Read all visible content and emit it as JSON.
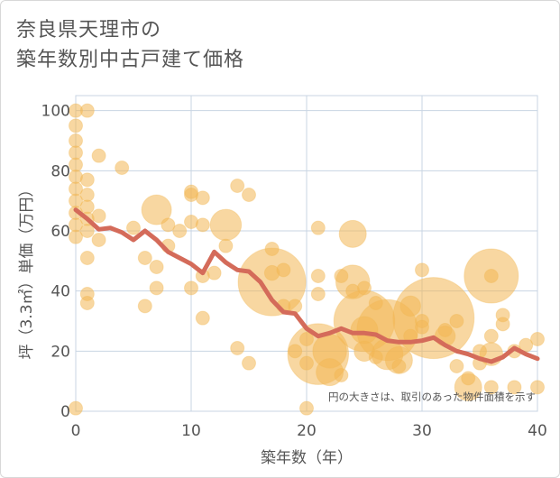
{
  "colors": {
    "bubble": "#f2b654",
    "line": "#d46b5a",
    "grid": "#c8d4e3",
    "text": "#555555"
  },
  "chart_data": {
    "type": "scatter",
    "title_lines": [
      "奈良県天理市の",
      "築年数別中古戸建て価格"
    ],
    "xlabel": "築年数（年）",
    "ylabel": "坪（3.3㎡）単価（万円）",
    "note": "円の大きさは、取引のあった物件面積を示す",
    "xlim": [
      0,
      40
    ],
    "ylim": [
      0,
      105
    ],
    "xticks": [
      "0",
      "10",
      "20",
      "30",
      "40"
    ],
    "yticks": [
      "0",
      "20",
      "40",
      "60",
      "80",
      "100"
    ],
    "grid": true,
    "series": [
      {
        "type": "scatter",
        "points": [
          {
            "x": 0,
            "y": 100,
            "s": 1
          },
          {
            "x": 0,
            "y": 95,
            "s": 1
          },
          {
            "x": 0,
            "y": 90,
            "s": 1
          },
          {
            "x": 0,
            "y": 86,
            "s": 1
          },
          {
            "x": 0,
            "y": 82,
            "s": 1
          },
          {
            "x": 0,
            "y": 78,
            "s": 1
          },
          {
            "x": 0,
            "y": 74,
            "s": 1
          },
          {
            "x": 0,
            "y": 70,
            "s": 1
          },
          {
            "x": 0,
            "y": 66,
            "s": 1
          },
          {
            "x": 0,
            "y": 62,
            "s": 1
          },
          {
            "x": 0,
            "y": 58,
            "s": 1
          },
          {
            "x": 0,
            "y": 1,
            "s": 1
          },
          {
            "x": 1,
            "y": 100,
            "s": 1
          },
          {
            "x": 1,
            "y": 77,
            "s": 1
          },
          {
            "x": 1,
            "y": 72,
            "s": 1
          },
          {
            "x": 1,
            "y": 68,
            "s": 1
          },
          {
            "x": 1,
            "y": 64,
            "s": 1
          },
          {
            "x": 1,
            "y": 60,
            "s": 1
          },
          {
            "x": 1,
            "y": 51,
            "s": 1
          },
          {
            "x": 1,
            "y": 39,
            "s": 1
          },
          {
            "x": 1,
            "y": 36,
            "s": 1
          },
          {
            "x": 2,
            "y": 85,
            "s": 1
          },
          {
            "x": 2,
            "y": 65,
            "s": 1
          },
          {
            "x": 2,
            "y": 57,
            "s": 1
          },
          {
            "x": 4,
            "y": 81,
            "s": 1
          },
          {
            "x": 5,
            "y": 61,
            "s": 1
          },
          {
            "x": 6,
            "y": 51,
            "s": 1
          },
          {
            "x": 6,
            "y": 35,
            "s": 1
          },
          {
            "x": 7,
            "y": 67,
            "s": 2.2
          },
          {
            "x": 7,
            "y": 48,
            "s": 1
          },
          {
            "x": 7,
            "y": 41,
            "s": 1
          },
          {
            "x": 8,
            "y": 62,
            "s": 1
          },
          {
            "x": 8,
            "y": 55,
            "s": 1
          },
          {
            "x": 9,
            "y": 60,
            "s": 1
          },
          {
            "x": 10,
            "y": 73,
            "s": 1
          },
          {
            "x": 10,
            "y": 72,
            "s": 1
          },
          {
            "x": 10,
            "y": 63,
            "s": 1
          },
          {
            "x": 10,
            "y": 41,
            "s": 1
          },
          {
            "x": 11,
            "y": 71,
            "s": 1
          },
          {
            "x": 11,
            "y": 62,
            "s": 1
          },
          {
            "x": 11,
            "y": 45,
            "s": 1
          },
          {
            "x": 11,
            "y": 31,
            "s": 1
          },
          {
            "x": 12,
            "y": 46,
            "s": 1
          },
          {
            "x": 13,
            "y": 62,
            "s": 2.3
          },
          {
            "x": 13,
            "y": 55,
            "s": 1
          },
          {
            "x": 14,
            "y": 75,
            "s": 1
          },
          {
            "x": 14,
            "y": 21,
            "s": 1
          },
          {
            "x": 15,
            "y": 72,
            "s": 1
          },
          {
            "x": 15,
            "y": 16,
            "s": 1
          },
          {
            "x": 17,
            "y": 43,
            "s": 5
          },
          {
            "x": 17,
            "y": 54,
            "s": 1
          },
          {
            "x": 17,
            "y": 46,
            "s": 1.1
          },
          {
            "x": 18,
            "y": 47,
            "s": 1
          },
          {
            "x": 18,
            "y": 35,
            "s": 1
          },
          {
            "x": 19,
            "y": 35,
            "s": 1
          },
          {
            "x": 19,
            "y": 20,
            "s": 1
          },
          {
            "x": 20,
            "y": 24,
            "s": 1
          },
          {
            "x": 20,
            "y": 16,
            "s": 1
          },
          {
            "x": 20,
            "y": 1,
            "s": 1
          },
          {
            "x": 21,
            "y": 61,
            "s": 1
          },
          {
            "x": 21,
            "y": 45,
            "s": 1
          },
          {
            "x": 21,
            "y": 39,
            "s": 1
          },
          {
            "x": 21,
            "y": 19,
            "s": 4.5
          },
          {
            "x": 22,
            "y": 20,
            "s": 2.5
          },
          {
            "x": 22,
            "y": 13,
            "s": 2
          },
          {
            "x": 23,
            "y": 45,
            "s": 1
          },
          {
            "x": 23,
            "y": 12,
            "s": 1
          },
          {
            "x": 24,
            "y": 59,
            "s": 2
          },
          {
            "x": 24,
            "y": 43,
            "s": 2.5
          },
          {
            "x": 24,
            "y": 40,
            "s": 1
          },
          {
            "x": 25,
            "y": 41,
            "s": 1
          },
          {
            "x": 25,
            "y": 30,
            "s": 4.5
          },
          {
            "x": 25,
            "y": 27,
            "s": 2
          },
          {
            "x": 25,
            "y": 20,
            "s": 1.5
          },
          {
            "x": 26,
            "y": 36,
            "s": 1
          },
          {
            "x": 26,
            "y": 18,
            "s": 1
          },
          {
            "x": 27,
            "y": 27,
            "s": 4.5
          },
          {
            "x": 27,
            "y": 19,
            "s": 2.3
          },
          {
            "x": 28,
            "y": 17,
            "s": 2
          },
          {
            "x": 28,
            "y": 15,
            "s": 1
          },
          {
            "x": 29,
            "y": 35,
            "s": 1.5
          },
          {
            "x": 29,
            "y": 25,
            "s": 1
          },
          {
            "x": 30,
            "y": 47,
            "s": 1
          },
          {
            "x": 30,
            "y": 30,
            "s": 1
          },
          {
            "x": 30,
            "y": 28,
            "s": 1
          },
          {
            "x": 31,
            "y": 31,
            "s": 6
          },
          {
            "x": 32,
            "y": 27,
            "s": 1
          },
          {
            "x": 32,
            "y": 25,
            "s": 1.5
          },
          {
            "x": 33,
            "y": 30,
            "s": 1
          },
          {
            "x": 33,
            "y": 15,
            "s": 1
          },
          {
            "x": 34,
            "y": 11,
            "s": 1
          },
          {
            "x": 34,
            "y": 8,
            "s": 2
          },
          {
            "x": 35,
            "y": 20,
            "s": 1
          },
          {
            "x": 35,
            "y": 16,
            "s": 1
          },
          {
            "x": 36,
            "y": 45,
            "s": 4
          },
          {
            "x": 36,
            "y": 45,
            "s": 1
          },
          {
            "x": 36,
            "y": 25,
            "s": 1
          },
          {
            "x": 36,
            "y": 19,
            "s": 1.7
          },
          {
            "x": 36,
            "y": 8,
            "s": 1
          },
          {
            "x": 37,
            "y": 32,
            "s": 1
          },
          {
            "x": 37,
            "y": 29,
            "s": 1
          },
          {
            "x": 38,
            "y": 20,
            "s": 1
          },
          {
            "x": 38,
            "y": 8,
            "s": 1
          },
          {
            "x": 39,
            "y": 22,
            "s": 1
          },
          {
            "x": 40,
            "y": 24,
            "s": 1
          },
          {
            "x": 40,
            "y": 8,
            "s": 1
          }
        ]
      },
      {
        "type": "line",
        "x": [
          0,
          1,
          2,
          3,
          4,
          5,
          6,
          7,
          8,
          9,
          10,
          11,
          12,
          13,
          14,
          15,
          16,
          17,
          18,
          19,
          20,
          21,
          22,
          23,
          24,
          25,
          26,
          27,
          28,
          29,
          30,
          31,
          32,
          33,
          34,
          35,
          36,
          37,
          38,
          39,
          40
        ],
        "y": [
          67,
          64,
          60.5,
          61,
          59.5,
          57,
          60,
          57,
          53,
          51,
          49,
          46,
          53,
          49.5,
          47,
          46.5,
          43,
          37,
          33,
          32.5,
          27.5,
          25,
          26,
          27.5,
          26,
          26,
          25.5,
          23.5,
          23,
          23,
          23.5,
          24.5,
          22,
          20,
          19,
          17.5,
          16.5,
          18,
          21,
          19,
          17.5
        ]
      }
    ]
  }
}
